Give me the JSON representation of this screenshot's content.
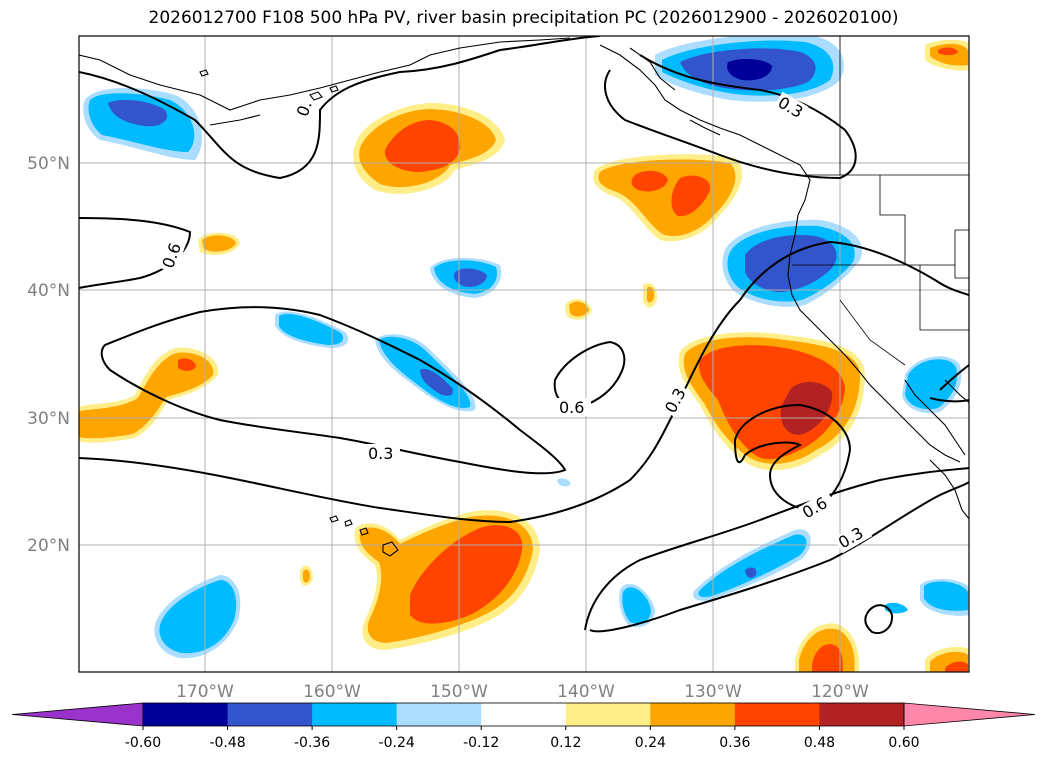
{
  "title": "2026012700 F108 500 hPa PV, river basin precipitation PC (2026012900 - 2026020100)",
  "axes": {
    "lat_labels": [
      "50°N",
      "40°N",
      "30°N",
      "20°N"
    ],
    "lon_labels": [
      "170°W",
      "160°W",
      "150°W",
      "140°W",
      "130°W",
      "120°W"
    ]
  },
  "contour_labels": [
    "0.",
    "0.3",
    "0.6",
    "0.3",
    "0.6",
    "0.3",
    "0.6",
    "0.3"
  ],
  "colorbar": {
    "ticks": [
      "-0.60",
      "-0.48",
      "-0.36",
      "-0.24",
      "-0.12",
      "0.12",
      "0.24",
      "0.36",
      "0.48",
      "0.60"
    ],
    "colors": [
      "#9933cc",
      "#000099",
      "#3355cc",
      "#00bbff",
      "#aaddff",
      "#ffffff",
      "#ffee88",
      "#ffa500",
      "#ff4400",
      "#b22222",
      "#ff88aa"
    ]
  },
  "palette": {
    "dark_blue": "#000099",
    "blue": "#3355cc",
    "cyan": "#00bbff",
    "light_blue": "#aaddff",
    "light_yellow": "#ffee88",
    "orange": "#ffa500",
    "red_orange": "#ff4400",
    "dark_red": "#b22222"
  }
}
